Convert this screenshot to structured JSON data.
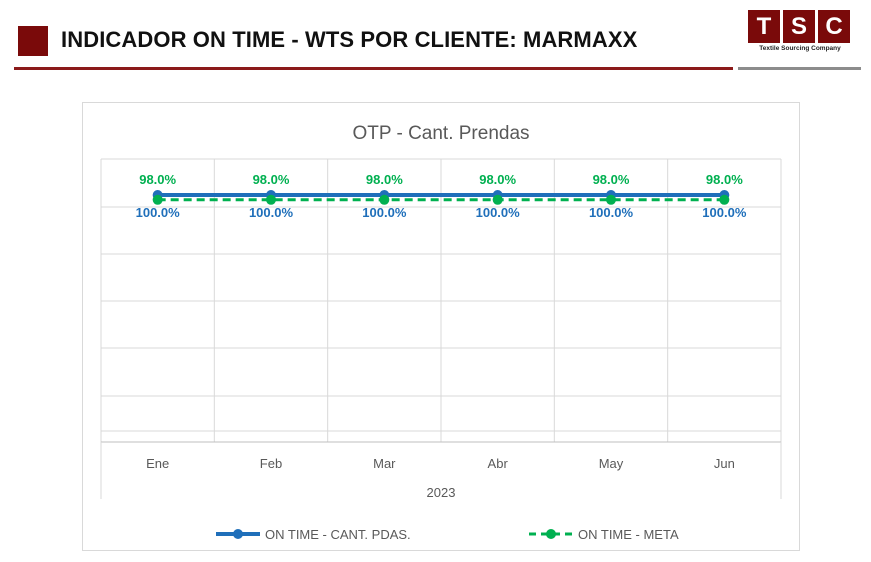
{
  "header": {
    "title": "INDICADOR ON TIME - WTS POR CLIENTE: MARMAXX",
    "logo_letters": [
      "T",
      "S",
      "C"
    ],
    "logo_subtitle": "Textile Sourcing Company",
    "accent_color": "#7a0a0a"
  },
  "chart_data": {
    "type": "line",
    "title": "OTP - Cant. Prendas",
    "categories": [
      "Ene",
      "Feb",
      "Mar",
      "Abr",
      "May",
      "Jun"
    ],
    "category_group": "2023",
    "series": [
      {
        "name": "ON TIME - CANT. PDAS.",
        "values": [
          100.0,
          100.0,
          100.0,
          100.0,
          100.0,
          100.0
        ],
        "labels": [
          "100.0%",
          "100.0%",
          "100.0%",
          "100.0%",
          "100.0%",
          "100.0%"
        ],
        "color": "#1f6fba",
        "style": "solid",
        "label_position": "below"
      },
      {
        "name": "ON TIME - META",
        "values": [
          98.0,
          98.0,
          98.0,
          98.0,
          98.0,
          98.0
        ],
        "labels": [
          "98.0%",
          "98.0%",
          "98.0%",
          "98.0%",
          "98.0%",
          "98.0%"
        ],
        "color": "#00b050",
        "style": "dashed",
        "label_position": "above"
      }
    ],
    "grid": true,
    "legend": "bottom"
  }
}
